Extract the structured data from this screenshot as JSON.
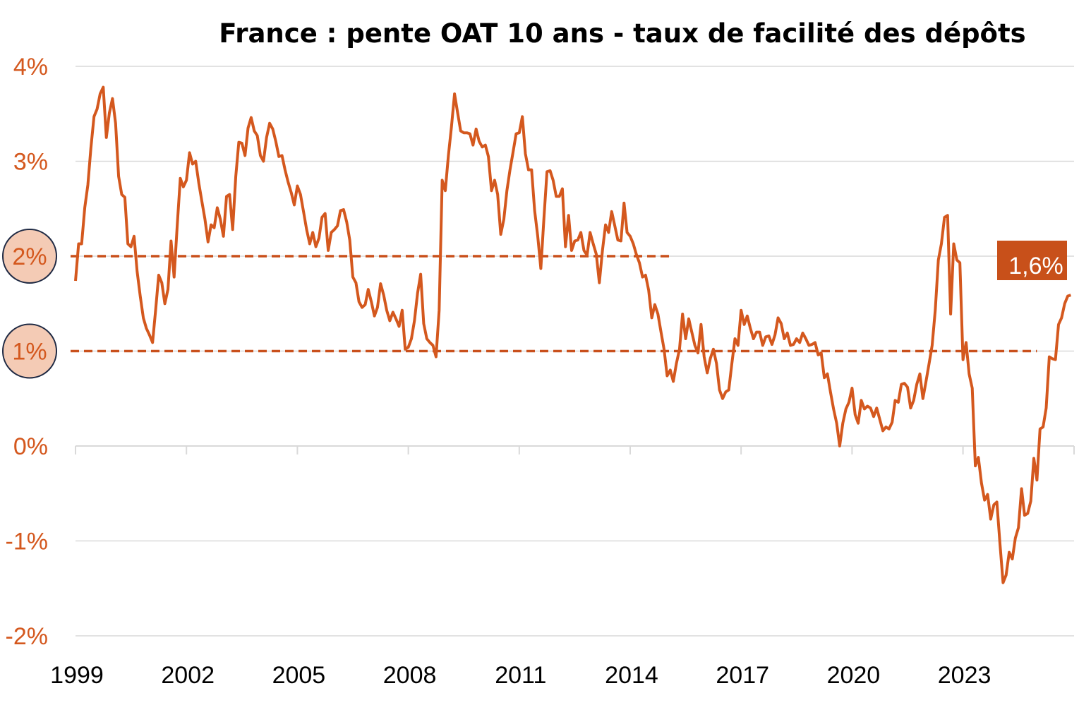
{
  "chart_data": {
    "type": "line",
    "title": "France : pente OAT 10 ans - taux de facilité des dépôts",
    "xlabel": "",
    "ylabel": "",
    "ylim": [
      -2,
      4
    ],
    "xlim": [
      1999,
      2026
    ],
    "y_ticks": [
      "-2%",
      "-1%",
      "0%",
      "1%",
      "2%",
      "3%",
      "4%"
    ],
    "y_tick_values": [
      -2,
      -1,
      0,
      1,
      2,
      3,
      4
    ],
    "x_ticks": [
      "1999",
      "2002",
      "2005",
      "2008",
      "2011",
      "2014",
      "2017",
      "2020",
      "2023"
    ],
    "x_tick_values": [
      1999,
      2002,
      2005,
      2008,
      2011,
      2014,
      2017,
      2020,
      2023
    ],
    "grid": true,
    "series_start": "1999-01",
    "series_frequency": "monthly",
    "values": [
      1.74,
      2.13,
      2.13,
      2.51,
      2.75,
      3.14,
      3.47,
      3.55,
      3.71,
      3.78,
      3.25,
      3.51,
      3.66,
      3.4,
      2.84,
      2.65,
      2.62,
      2.13,
      2.1,
      2.21,
      1.84,
      1.58,
      1.35,
      1.24,
      1.17,
      1.09,
      1.43,
      1.8,
      1.72,
      1.5,
      1.65,
      2.16,
      1.78,
      2.32,
      2.82,
      2.73,
      2.8,
      3.09,
      2.97,
      3.0,
      2.77,
      2.58,
      2.39,
      2.15,
      2.33,
      2.3,
      2.51,
      2.39,
      2.21,
      2.63,
      2.65,
      2.28,
      2.84,
      3.2,
      3.19,
      3.06,
      3.35,
      3.46,
      3.32,
      3.27,
      3.06,
      3.0,
      3.25,
      3.4,
      3.34,
      3.21,
      3.05,
      3.06,
      2.91,
      2.78,
      2.67,
      2.54,
      2.74,
      2.65,
      2.47,
      2.28,
      2.13,
      2.25,
      2.1,
      2.19,
      2.41,
      2.45,
      2.06,
      2.25,
      2.28,
      2.32,
      2.48,
      2.49,
      2.36,
      2.17,
      1.78,
      1.72,
      1.52,
      1.46,
      1.49,
      1.65,
      1.52,
      1.37,
      1.46,
      1.71,
      1.59,
      1.43,
      1.32,
      1.41,
      1.34,
      1.26,
      1.43,
      1.02,
      1.04,
      1.13,
      1.32,
      1.61,
      1.81,
      1.29,
      1.13,
      1.09,
      1.06,
      0.94,
      1.43,
      2.8,
      2.69,
      3.06,
      3.36,
      3.71,
      3.51,
      3.32,
      3.3,
      3.3,
      3.29,
      3.17,
      3.34,
      3.21,
      3.15,
      3.17,
      3.05,
      2.69,
      2.8,
      2.65,
      2.23,
      2.39,
      2.69,
      2.91,
      3.1,
      3.29,
      3.3,
      3.47,
      3.08,
      2.91,
      2.91,
      2.48,
      2.21,
      1.87,
      2.39,
      2.89,
      2.9,
      2.8,
      2.63,
      2.63,
      2.71,
      2.1,
      2.43,
      2.06,
      2.16,
      2.17,
      2.25,
      2.06,
      2.01,
      2.25,
      2.13,
      2.02,
      1.72,
      2.06,
      2.33,
      2.25,
      2.47,
      2.32,
      2.17,
      2.16,
      2.56,
      2.25,
      2.21,
      2.13,
      2.02,
      1.93,
      1.78,
      1.8,
      1.64,
      1.35,
      1.49,
      1.39,
      1.2,
      1.02,
      0.74,
      0.8,
      0.68,
      0.87,
      1.02,
      1.39,
      1.13,
      1.34,
      1.2,
      1.06,
      0.98,
      1.28,
      0.94,
      0.77,
      0.92,
      1.02,
      0.87,
      0.59,
      0.5,
      0.57,
      0.59,
      0.87,
      1.13,
      1.06,
      1.43,
      1.28,
      1.37,
      1.24,
      1.13,
      1.2,
      1.2,
      1.06,
      1.15,
      1.16,
      1.07,
      1.17,
      1.35,
      1.29,
      1.13,
      1.19,
      1.06,
      1.07,
      1.13,
      1.09,
      1.19,
      1.13,
      1.06,
      1.07,
      1.09,
      0.96,
      0.98,
      0.72,
      0.76,
      0.57,
      0.39,
      0.24,
      0.0,
      0.24,
      0.39,
      0.46,
      0.61,
      0.33,
      0.24,
      0.48,
      0.39,
      0.42,
      0.4,
      0.31,
      0.4,
      0.28,
      0.16,
      0.2,
      0.18,
      0.25,
      0.48,
      0.46,
      0.65,
      0.66,
      0.62,
      0.4,
      0.48,
      0.65,
      0.76,
      0.5,
      0.68,
      0.87,
      1.06,
      1.43,
      1.96,
      2.13,
      2.41,
      2.43,
      1.39,
      2.13,
      1.96,
      1.93,
      0.91,
      1.09,
      0.76,
      0.61,
      -0.21,
      -0.12,
      -0.39,
      -0.57,
      -0.51,
      -0.77,
      -0.62,
      -0.59,
      -1.03,
      -1.44,
      -1.36,
      -1.12,
      -1.19,
      -0.97,
      -0.86,
      -0.45,
      -0.73,
      -0.71,
      -0.58,
      -0.13,
      -0.36,
      0.18,
      0.2,
      0.4,
      0.94,
      0.92,
      0.91,
      1.28,
      1.35,
      1.5,
      1.58,
      1.59
    ],
    "reference_lines": [
      {
        "value": 2,
        "from": 1999,
        "to": 2015.1,
        "label": "2%"
      },
      {
        "value": 1,
        "from": 1999,
        "to": 2025.0,
        "label": "1%"
      }
    ],
    "last_value_label": "1,6%",
    "colors": {
      "line": "#D4581E",
      "reference": "#C9501C",
      "label_box": "#C8501A",
      "circle_fill": "#F4CBB5",
      "circle_stroke": "#1F2A44",
      "tick_label": "#D4581E"
    }
  }
}
